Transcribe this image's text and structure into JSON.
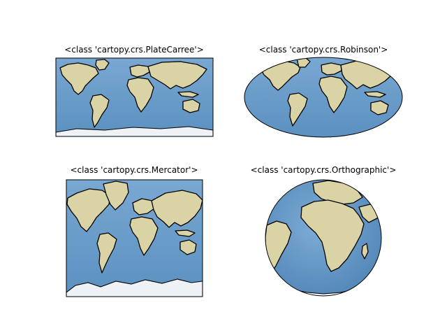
{
  "figure": {
    "panels": [
      {
        "title": "<class 'cartopy.crs.PlateCarree'>"
      },
      {
        "title": "<class 'cartopy.crs.Robinson'>"
      },
      {
        "title": "<class 'cartopy.crs.Mercator'>"
      },
      {
        "title": "<class 'cartopy.crs.Orthographic'>"
      }
    ]
  },
  "colors": {
    "ocean": "#6a9ecb",
    "ocean_dark": "#4f86b8",
    "land": "#d9d3a6",
    "land_green": "#a9c189",
    "ice": "#eef1f6",
    "coastline": "#000000"
  }
}
